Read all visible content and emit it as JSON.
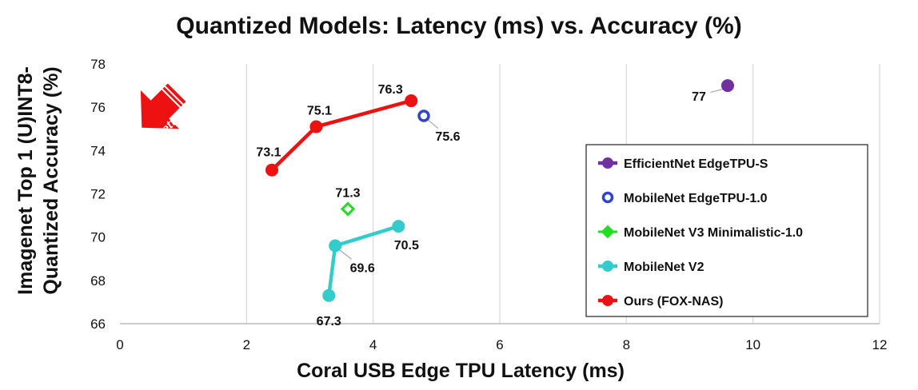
{
  "chart_data": {
    "type": "scatter",
    "title": "Quantized Models: Latency (ms) vs. Accuracy (%)",
    "xlabel": "Coral USB Edge TPU Latency (ms)",
    "ylabel_line1": "Imagenet Top 1 (U)INT8-",
    "ylabel_line2": "Quantized Accuracy (%)",
    "xlim": [
      0,
      12
    ],
    "ylim": [
      66,
      78
    ],
    "xticks": [
      "0",
      "2",
      "4",
      "6",
      "8",
      "10",
      "12"
    ],
    "yticks": [
      "66",
      "68",
      "70",
      "72",
      "74",
      "76",
      "78"
    ],
    "grid": "vertical",
    "legend_position": "bottom-right",
    "annotation": "Better",
    "series": [
      {
        "name": "EfficientNet EdgeTPU-S",
        "color": "#7030A0",
        "marker": "circle-filled",
        "points": [
          {
            "x": 9.6,
            "y": 77.0,
            "label": "77"
          }
        ]
      },
      {
        "name": "MobileNet EdgeTPU-1.0",
        "color": "#3344CC",
        "marker": "circle-hollow",
        "points": [
          {
            "x": 4.8,
            "y": 75.6,
            "label": "75.6"
          }
        ]
      },
      {
        "name": "MobileNet V3  Minimalistic-1.0",
        "color": "#22DD22",
        "marker": "diamond",
        "points": [
          {
            "x": 3.6,
            "y": 71.3,
            "label": "71.3"
          }
        ]
      },
      {
        "name": "MobileNet V2",
        "color": "#33CCCC",
        "marker": "circle-filled",
        "points": [
          {
            "x": 3.3,
            "y": 67.3,
            "label": "67.3"
          },
          {
            "x": 3.4,
            "y": 69.6,
            "label": "69.6"
          },
          {
            "x": 4.4,
            "y": 70.5,
            "label": "70.5"
          }
        ]
      },
      {
        "name": "Ours (FOX-NAS)",
        "color": "#EE1111",
        "marker": "circle-filled",
        "points": [
          {
            "x": 2.4,
            "y": 73.1,
            "label": "73.1"
          },
          {
            "x": 3.1,
            "y": 75.1,
            "label": "75.1"
          },
          {
            "x": 4.6,
            "y": 76.3,
            "label": "76.3"
          }
        ]
      }
    ]
  }
}
